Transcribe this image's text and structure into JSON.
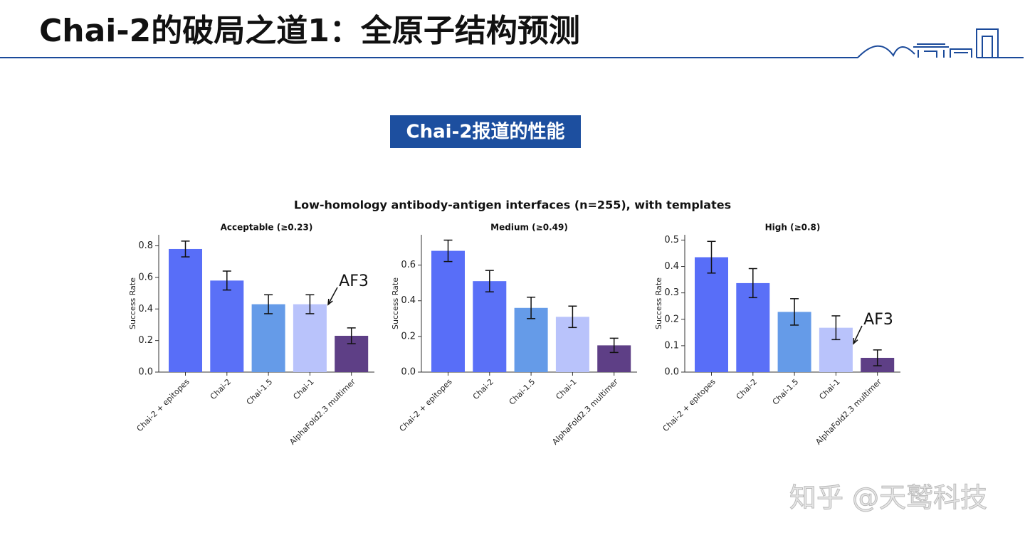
{
  "header": {
    "title": "Chai-2的破局之道1：全原子结构预测"
  },
  "badge": "Chai-2报道的性能",
  "figure_title": "Low-homology antibody-antigen interfaces (n=255), with templates",
  "watermark": "知乎 @天鹫科技",
  "chart_data": [
    {
      "type": "bar",
      "title": "Acceptable (≥0.23)",
      "ylabel": "Success Rate",
      "categories": [
        "Chai-2 + epitopes",
        "Chai-2",
        "Chai-1.5",
        "Chai-1",
        "AlphaFold2.3 multimer"
      ],
      "values": [
        0.78,
        0.58,
        0.43,
        0.43,
        0.23
      ],
      "errors": [
        0.05,
        0.06,
        0.06,
        0.06,
        0.05
      ],
      "colors": [
        "#586ef8",
        "#5a70f7",
        "#659be8",
        "#b9c3fb",
        "#5e3f86"
      ],
      "ylim": [
        0,
        0.87
      ],
      "yticks": [
        {
          "value": 0,
          "label": "0.0"
        },
        0.2,
        0.4,
        0.6,
        0.8
      ],
      "annotation": "AF3"
    },
    {
      "type": "bar",
      "title": "Medium (≥0.49)",
      "ylabel": "Success Rate",
      "categories": [
        "Chai-2 + epitopes",
        "Chai-2",
        "Chai-1.5",
        "Chai-1",
        "AlphaFold2.3 multimer"
      ],
      "values": [
        0.68,
        0.51,
        0.36,
        0.31,
        0.15
      ],
      "errors": [
        0.06,
        0.06,
        0.06,
        0.06,
        0.04
      ],
      "colors": [
        "#586ef8",
        "#5a70f7",
        "#659be8",
        "#b9c3fb",
        "#5e3f86"
      ],
      "ylim": [
        0,
        0.77
      ],
      "yticks": [
        {
          "value": 0,
          "label": "0.0"
        },
        0.2,
        0.4,
        0.6
      ]
    },
    {
      "type": "bar",
      "title": "High (≥0.8)",
      "ylabel": "Success Rate",
      "categories": [
        "Chai-2 + epitopes",
        "Chai-2",
        "Chai-1.5",
        "Chai-1",
        "AlphaFold2.3 multimer"
      ],
      "values": [
        0.435,
        0.337,
        0.228,
        0.168,
        0.054
      ],
      "errors": [
        0.06,
        0.055,
        0.05,
        0.045,
        0.03
      ],
      "colors": [
        "#586ef8",
        "#5a70f7",
        "#659be8",
        "#b9c3fb",
        "#5e3f86"
      ],
      "ylim": [
        0,
        0.52
      ],
      "yticks": [
        {
          "value": 0,
          "label": "0.0"
        },
        0.1,
        0.2,
        0.3,
        0.4,
        0.5
      ],
      "annotation": "AF3"
    }
  ]
}
